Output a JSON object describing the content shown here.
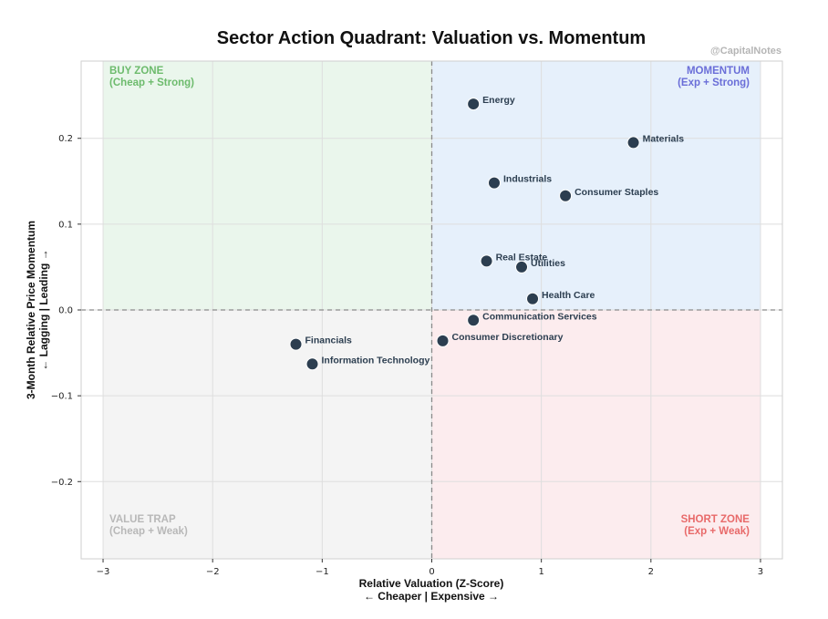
{
  "chart_data": {
    "type": "scatter",
    "title": "Sector Action Quadrant: Valuation vs. Momentum",
    "watermark": "@CapitalNotes",
    "xlabel": "Relative Valuation (Z-Score)",
    "xlabel2": "← Cheaper | Expensive →",
    "ylabel": "3-Month Relative Price Momentum",
    "ylabel2": "← Lagging | Leading →",
    "xlim": [
      -3.2,
      3.2
    ],
    "ylim": [
      -0.29,
      0.29
    ],
    "xticks": [
      -3,
      -2,
      -1,
      0,
      1,
      2,
      3
    ],
    "xtick_labels": [
      "−3",
      "−2",
      "−1",
      "0",
      "1",
      "2",
      "3"
    ],
    "yticks": [
      0.2,
      0.1,
      0.0,
      -0.1,
      -0.2
    ],
    "ytick_labels": [
      "0.2",
      "0.1",
      "0.0",
      "−0.1",
      "−0.2"
    ],
    "grid": true,
    "quadrant_shading_x": [
      -3,
      3
    ],
    "quadrants": [
      {
        "name": "BUY ZONE",
        "sub": "(Cheap + Strong)",
        "color": "#6dbb6d",
        "fill": "#eaf6ec",
        "position": "top-left"
      },
      {
        "name": "MOMENTUM",
        "sub": "(Exp + Strong)",
        "color": "#6a6ed8",
        "fill": "#e6f0fb",
        "position": "top-right"
      },
      {
        "name": "VALUE TRAP",
        "sub": "(Cheap + Weak)",
        "color": "#b8b8b8",
        "fill": "#f4f4f4",
        "position": "bottom-left"
      },
      {
        "name": "SHORT ZONE",
        "sub": "(Exp + Weak)",
        "color": "#e86a6a",
        "fill": "#fcecee",
        "position": "bottom-right"
      }
    ],
    "point_color": "#2c3e50",
    "points": [
      {
        "label": "Energy",
        "x": 0.38,
        "y": 0.24
      },
      {
        "label": "Materials",
        "x": 1.84,
        "y": 0.195
      },
      {
        "label": "Industrials",
        "x": 0.57,
        "y": 0.148
      },
      {
        "label": "Consumer Staples",
        "x": 1.22,
        "y": 0.133
      },
      {
        "label": "Real Estate",
        "x": 0.5,
        "y": 0.057
      },
      {
        "label": "Utilities",
        "x": 0.82,
        "y": 0.05
      },
      {
        "label": "Health Care",
        "x": 0.92,
        "y": 0.013
      },
      {
        "label": "Communication Services",
        "x": 0.38,
        "y": -0.012
      },
      {
        "label": "Consumer Discretionary",
        "x": 0.1,
        "y": -0.036
      },
      {
        "label": "Financials",
        "x": -1.24,
        "y": -0.04
      },
      {
        "label": "Information Technology",
        "x": -1.09,
        "y": -0.063
      }
    ]
  }
}
